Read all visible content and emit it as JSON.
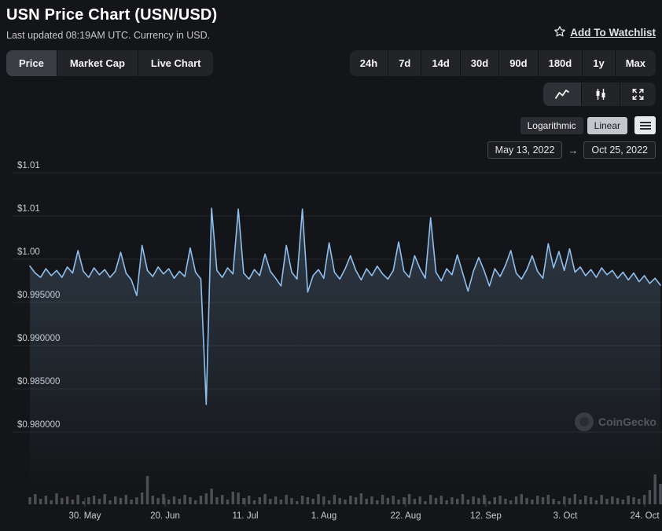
{
  "header": {
    "title": "USN Price Chart (USN/USD)",
    "subtitle": "Last updated 08:19AM UTC. Currency in USD.",
    "watchlist_label": "Add To Watchlist"
  },
  "tabs": [
    {
      "label": "Price",
      "active": true
    },
    {
      "label": "Market Cap",
      "active": false
    },
    {
      "label": "Live Chart",
      "active": false
    }
  ],
  "ranges": [
    "24h",
    "7d",
    "14d",
    "30d",
    "90d",
    "180d",
    "1y",
    "Max"
  ],
  "scale_toggle": {
    "options": [
      "Logarithmic",
      "Linear"
    ],
    "selected": "Linear"
  },
  "date_range": {
    "from": "May 13, 2022",
    "separator": "→",
    "to": "Oct 25, 2022"
  },
  "watermark": "CoinGecko",
  "theme": {
    "background": "#141518",
    "button_bg": "#232428",
    "active_button_bg": "#3a3d44",
    "selected_scale_bg": "#c4c6cc",
    "text": "#ffffff",
    "muted_text": "#c6c7ca",
    "grid": "#26272c",
    "volume_bar": "#4d4f55"
  },
  "chart_data": {
    "type": "line",
    "title": "USN/USD price, May 13 2022 - Oct 25 2022",
    "line_color": "#8FBFEE",
    "ylim": [
      0.978,
      1.0105
    ],
    "grid": true,
    "y_axis_labels": [
      "$1.01",
      "$1.01",
      "$1.00",
      "$0.995000",
      "$0.990000",
      "$0.985000",
      "$0.980000"
    ],
    "y_axis_values": [
      1.01,
      1.005,
      1.0,
      0.995,
      0.99,
      0.985,
      0.98
    ],
    "x_axis_labels": [
      "30. May",
      "20. Jun",
      "11. Jul",
      "1. Aug",
      "22. Aug",
      "12. Sep",
      "3. Oct",
      "24. Oct"
    ],
    "values": [
      0.9992,
      0.9984,
      0.9979,
      0.9989,
      0.9981,
      0.9987,
      0.9979,
      0.9991,
      0.9984,
      1.001,
      0.9986,
      0.9979,
      0.999,
      0.9982,
      0.9988,
      0.9979,
      0.9986,
      1.0008,
      0.9984,
      0.9976,
      0.9958,
      1.0016,
      0.9987,
      0.998,
      0.9991,
      0.9983,
      0.9989,
      0.9978,
      0.9986,
      0.998,
      1.0013,
      0.9985,
      0.9977,
      0.9832,
      1.0059,
      0.9987,
      0.9979,
      0.999,
      0.9983,
      1.0058,
      0.9984,
      0.9977,
      0.9988,
      0.9981,
      1.0006,
      0.9986,
      0.9978,
      0.9969,
      1.0016,
      0.9985,
      0.9977,
      1.0058,
      0.9962,
      0.9981,
      0.9988,
      0.9978,
      1.0019,
      0.9985,
      0.9977,
      0.9989,
      1.0004,
      0.9987,
      0.9976,
      0.9989,
      0.9981,
      0.9992,
      0.9983,
      0.9977,
      0.9987,
      1.002,
      0.9986,
      0.9979,
      1.0004,
      0.9989,
      0.9978,
      1.0048,
      0.9985,
      0.9975,
      0.9989,
      0.9982,
      1.0005,
      0.9984,
      0.9963,
      0.9986,
      1.0002,
      0.9987,
      0.9969,
      0.9989,
      0.998,
      0.9993,
      1.001,
      0.9984,
      0.9977,
      0.9988,
      1.0004,
      0.9986,
      0.9978,
      1.0018,
      0.999,
      1.0009,
      0.9987,
      1.0012,
      0.9985,
      0.9991,
      0.9981,
      0.9988,
      0.9979,
      0.999,
      0.9982,
      0.9987,
      0.9978,
      0.9985,
      0.9976,
      0.9984,
      0.9974,
      0.9981,
      0.9972,
      0.9978,
      0.997
    ],
    "volumes": [
      9,
      13,
      7,
      11,
      5,
      14,
      8,
      10,
      6,
      12,
      4,
      9,
      11,
      7,
      13,
      5,
      10,
      8,
      12,
      6,
      9,
      15,
      36,
      11,
      8,
      13,
      6,
      10,
      7,
      12,
      9,
      5,
      11,
      14,
      20,
      9,
      12,
      6,
      16,
      15,
      8,
      11,
      5,
      9,
      13,
      7,
      10,
      6,
      12,
      8,
      4,
      11,
      9,
      7,
      13,
      10,
      5,
      12,
      8,
      6,
      11,
      9,
      14,
      7,
      10,
      5,
      12,
      8,
      11,
      6,
      9,
      13,
      7,
      10,
      4,
      12,
      8,
      11,
      5,
      9,
      7,
      13,
      6,
      10,
      8,
      12,
      4,
      9,
      11,
      7,
      5,
      10,
      13,
      8,
      6,
      11,
      9,
      12,
      7,
      4,
      10,
      8,
      13,
      6,
      11,
      9,
      5,
      12,
      7,
      10,
      8,
      6,
      11,
      9,
      7,
      12,
      18,
      38,
      26
    ]
  }
}
